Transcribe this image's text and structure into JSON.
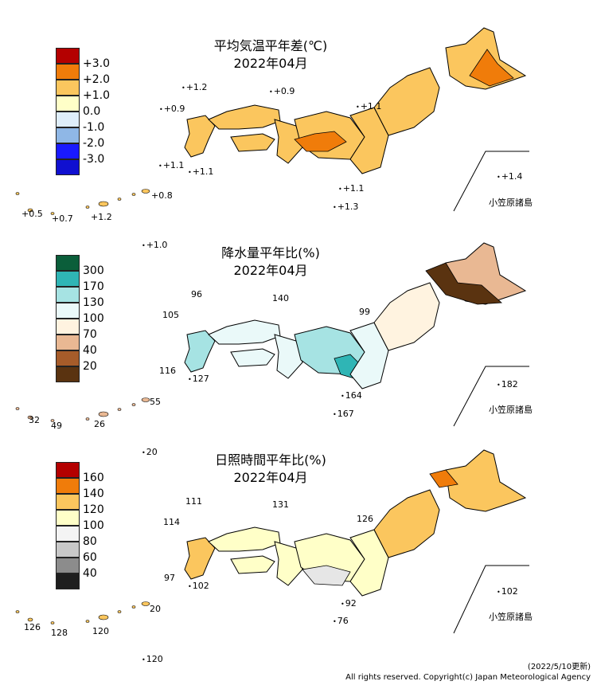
{
  "panels": [
    {
      "title": "平均気温平年差(℃)",
      "subtitle": "2022年04月",
      "legend": [
        {
          "label": "+3.0",
          "color": "#b40000"
        },
        {
          "label": "+2.0",
          "color": "#f07c0a"
        },
        {
          "label": "+1.0",
          "color": "#fbc65e"
        },
        {
          "label": "0.0",
          "color": "#ffffc8"
        },
        {
          "label": "-1.0",
          "color": "#dfeefa"
        },
        {
          "label": "-2.0",
          "color": "#8fb7e6"
        },
        {
          "label": "-3.0",
          "color": "#1a1aff"
        }
      ],
      "legend_bottom_color": "#1010d0",
      "region_colors": {
        "hokkaido": "#fbc65e",
        "hokkaido_core": "#f07c0a",
        "tohoku": "#fbc65e",
        "kanto": "#fbc65e",
        "chubu": "#fbc65e",
        "chubu_core": "#f07c0a",
        "kinki": "#fbc65e",
        "chugoku": "#fbc65e",
        "shikoku": "#fbc65e",
        "kyushu": "#fbc65e"
      },
      "stations": [
        "+1.2",
        "+0.9",
        "+0.9",
        "+1.1",
        "+1.1",
        "+1.1",
        "+1.1",
        "+1.3",
        "+0.5",
        "+0.7",
        "+1.2",
        "+0.8",
        "+1.0",
        "+1.4"
      ],
      "ogasawara": "小笠原諸島"
    },
    {
      "title": "降水量平年比(%)",
      "subtitle": "2022年04月",
      "legend": [
        {
          "label": "300",
          "color": "#0b5e3a"
        },
        {
          "label": "170",
          "color": "#2fb5b5"
        },
        {
          "label": "130",
          "color": "#a6e3e3"
        },
        {
          "label": "100",
          "color": "#eaf9f9"
        },
        {
          "label": "70",
          "color": "#fff3e0"
        },
        {
          "label": "40",
          "color": "#e9b893"
        },
        {
          "label": "20",
          "color": "#a65c2a"
        }
      ],
      "legend_bottom_color": "#5a3310",
      "region_colors": {
        "hokkaido": "#e9b893",
        "hokkaido_core": "#5a3310",
        "tohoku": "#fff3e0",
        "kanto": "#eaf9f9",
        "chubu": "#a6e3e3",
        "chubu_core": "#2fb5b5",
        "kinki": "#eaf9f9",
        "chugoku": "#eaf9f9",
        "shikoku": "#eaf9f9",
        "kyushu": "#a6e3e3"
      },
      "stations": [
        "96",
        "140",
        "105",
        "99",
        "116",
        "127",
        "164",
        "167",
        "32",
        "49",
        "26",
        "55",
        "20",
        "182"
      ],
      "ogasawara": "小笠原諸島"
    },
    {
      "title": "日照時間平年比(%)",
      "subtitle": "2022年04月",
      "legend": [
        {
          "label": "160",
          "color": "#b40000"
        },
        {
          "label": "140",
          "color": "#f07c0a"
        },
        {
          "label": "120",
          "color": "#fbc65e"
        },
        {
          "label": "100",
          "color": "#ffffc8"
        },
        {
          "label": "80",
          "color": "#f4f4f4"
        },
        {
          "label": "60",
          "color": "#c8c8c8"
        },
        {
          "label": "40",
          "color": "#8c8c8c"
        }
      ],
      "legend_bottom_color": "#1e1e1e",
      "region_colors": {
        "hokkaido": "#fbc65e",
        "hokkaido_core": "#f07c0a",
        "tohoku": "#fbc65e",
        "kanto": "#ffffc8",
        "chubu": "#ffffc8",
        "chubu_core": "#e6e6e6",
        "kinki": "#ffffc8",
        "chugoku": "#ffffc8",
        "shikoku": "#ffffc8",
        "kyushu": "#fbc65e"
      },
      "stations": [
        "111",
        "131",
        "114",
        "126",
        "97",
        "102",
        "92",
        "76",
        "126",
        "128",
        "120",
        "20",
        "120",
        "102"
      ],
      "ogasawara": "小笠原諸島"
    }
  ],
  "footer": {
    "date": "(2022/5/10更新)",
    "copyright": "All rights reserved. Copyright(c) Japan Meteorological Agency"
  }
}
